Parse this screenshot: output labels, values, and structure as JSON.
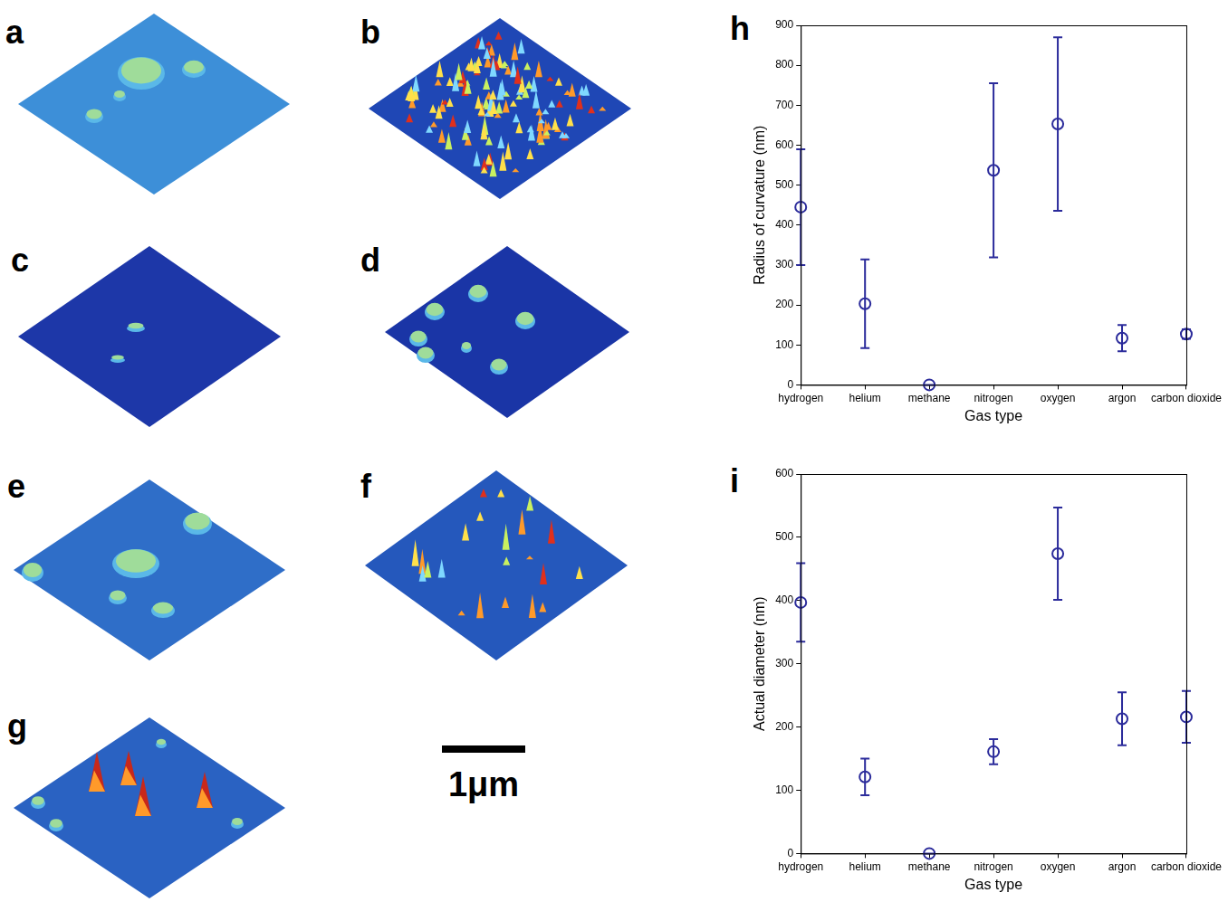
{
  "chart_data": [
    {
      "panel": "h",
      "type": "scatter",
      "x_label": "Gas type",
      "y_label": "Radius of curvature (nm)",
      "categories": [
        "hydrogen",
        "helium",
        "methane",
        "nitrogen",
        "oxygen",
        "argon",
        "carbon dioxide"
      ],
      "values": [
        445,
        203,
        0,
        537,
        653,
        117,
        127
      ],
      "errors": [
        145,
        111,
        0,
        218,
        217,
        33,
        12
      ],
      "color": "#2b2b9b",
      "marker": "circle",
      "ylim": [
        0,
        900
      ],
      "yticks": [
        0,
        100,
        200,
        300,
        400,
        500,
        600,
        700,
        800,
        900
      ],
      "grid": false
    },
    {
      "panel": "i",
      "type": "scatter",
      "x_label": "Gas type",
      "y_label": "Actual diameter (nm)",
      "categories": [
        "hydrogen",
        "helium",
        "methane",
        "nitrogen",
        "oxygen",
        "argon",
        "carbon dioxide"
      ],
      "values": [
        397,
        121,
        0,
        161,
        474,
        213,
        216
      ],
      "errors": [
        62,
        29,
        0,
        20,
        73,
        42,
        41
      ],
      "color": "#2b2b9b",
      "marker": "circle",
      "ylim": [
        0,
        600
      ],
      "yticks": [
        0,
        100,
        200,
        300,
        400,
        500,
        600
      ],
      "grid": false
    }
  ],
  "images": [
    {
      "label": "a"
    },
    {
      "label": "b"
    },
    {
      "label": "c"
    },
    {
      "label": "d"
    },
    {
      "label": "e"
    },
    {
      "label": "f"
    },
    {
      "label": "g"
    }
  ],
  "scale_bar": {
    "label": "1μm"
  }
}
